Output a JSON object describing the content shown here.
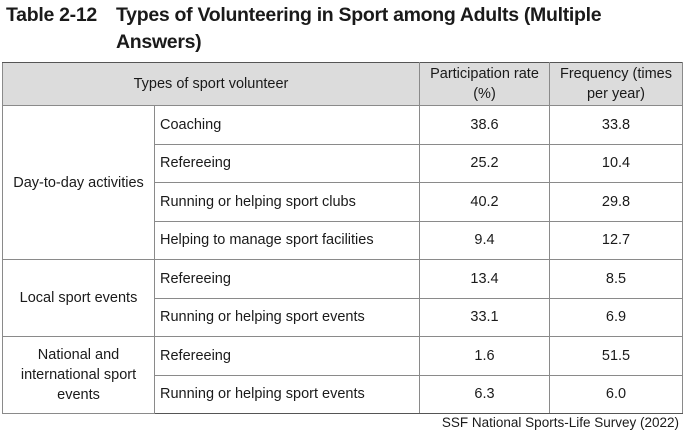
{
  "title": {
    "number": "Table 2-12",
    "text": "Types of Volunteering in Sport among Adults (Multiple Answers)"
  },
  "table": {
    "headers": {
      "type": "Types of sport volunteer",
      "rate": "Participation rate (%)",
      "frequency": "Frequency (times per year)"
    },
    "groups": [
      {
        "label": "Day-to-day activities",
        "rows": [
          {
            "type": "Coaching",
            "rate": "38.6",
            "frequency": "33.8"
          },
          {
            "type": "Refereeing",
            "rate": "25.2",
            "frequency": "10.4"
          },
          {
            "type": "Running or helping sport clubs",
            "rate": "40.2",
            "frequency": "29.8"
          },
          {
            "type": "Helping to manage sport facilities",
            "rate": "9.4",
            "frequency": "12.7"
          }
        ]
      },
      {
        "label": "Local sport events",
        "rows": [
          {
            "type": "Refereeing",
            "rate": "13.4",
            "frequency": "8.5"
          },
          {
            "type": "Running or helping sport events",
            "rate": "33.1",
            "frequency": "6.9"
          }
        ]
      },
      {
        "label": "National and international sport events",
        "rows": [
          {
            "type": "Refereeing",
            "rate": "1.6",
            "frequency": "51.5"
          },
          {
            "type": "Running or helping sport events",
            "rate": "6.3",
            "frequency": "6.0"
          }
        ]
      }
    ]
  },
  "source": "SSF National Sports-Life Survey (2022)"
}
